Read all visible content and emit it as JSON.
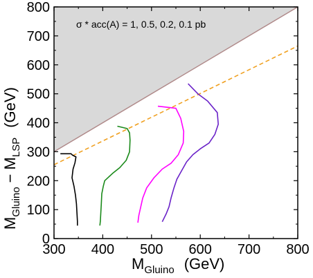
{
  "chart_data": {
    "type": "line",
    "xlabel_main": "M",
    "xlabel_sub": "Gluino",
    "xlabel_unit": "(GeV)",
    "ylabel_part1_main": "M",
    "ylabel_part1_sub": "Gluino",
    "ylabel_dash": "−",
    "ylabel_part2_main": "M",
    "ylabel_part2_sub": "LSP",
    "ylabel_unit": "(GeV)",
    "xlim": [
      300,
      800
    ],
    "ylim": [
      0,
      800
    ],
    "x_ticks": [
      "300",
      "400",
      "500",
      "600",
      "700",
      "800"
    ],
    "y_ticks": [
      "0",
      "100",
      "200",
      "300",
      "400",
      "500",
      "600",
      "700",
      "800"
    ],
    "annotation": "σ * acc(A) = 1,  0.5,  0.2,  0.1 pb",
    "excluded_region": {
      "boundary": [
        [
          300,
          300
        ],
        [
          800,
          800
        ]
      ],
      "color": "#d9d9d9",
      "edge_color": "#b08a8a"
    },
    "reference_line": {
      "style": "dashed",
      "color": "#f0a020",
      "points": [
        [
          300,
          255
        ],
        [
          800,
          665
        ]
      ]
    },
    "series": [
      {
        "color": "#000000",
        "points": [
          [
            313,
            293
          ],
          [
            335,
            293
          ],
          [
            338,
            288
          ],
          [
            345,
            282
          ],
          [
            343,
            262
          ],
          [
            339,
            240
          ],
          [
            337,
            210
          ],
          [
            341,
            180
          ],
          [
            344,
            150
          ],
          [
            346,
            120
          ],
          [
            347,
            90
          ],
          [
            348,
            60
          ],
          [
            348,
            45
          ]
        ]
      },
      {
        "color": "#1a8a1a",
        "points": [
          [
            430,
            388
          ],
          [
            450,
            380
          ],
          [
            455,
            365
          ],
          [
            456,
            340
          ],
          [
            455,
            300
          ],
          [
            448,
            270
          ],
          [
            435,
            245
          ],
          [
            420,
            225
          ],
          [
            404,
            200
          ],
          [
            401,
            180
          ],
          [
            398,
            155
          ],
          [
            397,
            120
          ],
          [
            396,
            90
          ],
          [
            395,
            60
          ],
          [
            394,
            45
          ]
        ]
      },
      {
        "color": "#ff00ff",
        "points": [
          [
            513,
            457
          ],
          [
            550,
            450
          ],
          [
            560,
            415
          ],
          [
            566,
            370
          ],
          [
            565,
            330
          ],
          [
            555,
            290
          ],
          [
            540,
            260
          ],
          [
            522,
            240
          ],
          [
            505,
            210
          ],
          [
            490,
            175
          ],
          [
            482,
            140
          ],
          [
            478,
            110
          ],
          [
            474,
            80
          ],
          [
            472,
            55
          ]
        ]
      },
      {
        "color": "#6a22c8",
        "points": [
          [
            575,
            535
          ],
          [
            595,
            500
          ],
          [
            615,
            475
          ],
          [
            635,
            435
          ],
          [
            637,
            395
          ],
          [
            630,
            360
          ],
          [
            618,
            330
          ],
          [
            600,
            310
          ],
          [
            585,
            290
          ],
          [
            572,
            265
          ],
          [
            562,
            235
          ],
          [
            552,
            205
          ],
          [
            546,
            175
          ],
          [
            540,
            140
          ],
          [
            536,
            110
          ],
          [
            530,
            85
          ],
          [
            522,
            58
          ]
        ]
      }
    ],
    "grid": false,
    "legend": "none"
  }
}
